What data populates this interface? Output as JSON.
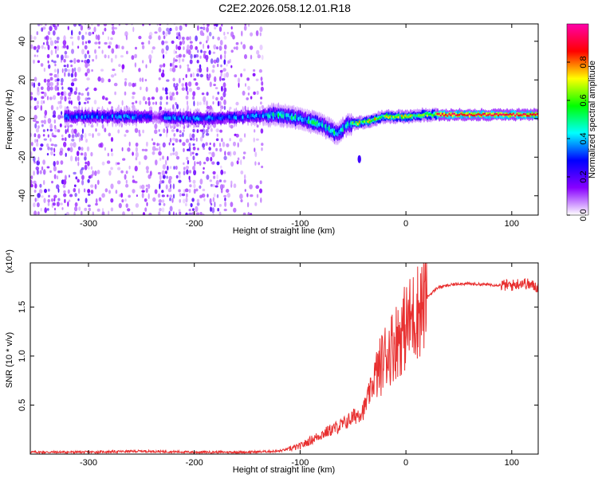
{
  "title": "C2E2.2026.058.12.01.R18",
  "chart_data": [
    {
      "type": "heatmap",
      "xlabel": "Height of straight line (km)",
      "ylabel": "Frequency (Hz)",
      "xlim": [
        -355,
        125
      ],
      "ylim": [
        -50,
        49
      ],
      "xticks": [
        -300,
        -200,
        -100,
        0,
        100
      ],
      "yticks": [
        -40,
        -20,
        0,
        20,
        40
      ],
      "grid": false,
      "colorbar": {
        "label": "Normalized spectral amplitude",
        "range": [
          0,
          1
        ],
        "ticks": [
          0.0,
          0.2,
          0.4,
          0.6,
          0.8
        ],
        "tick_labels": [
          "0.0",
          "0.2",
          "0.4",
          "0.6",
          "0.8"
        ],
        "colors": [
          "#ffffff",
          "#8800ff",
          "#0000ff",
          "#00ffff",
          "#00ff00",
          "#ffff00",
          "#ff0000",
          "#ff00aa"
        ]
      },
      "ridge": {
        "description": "strong signal band centred near 0 Hz",
        "x": [
          -320,
          -300,
          -250,
          -200,
          -150,
          -120,
          -100,
          -80,
          -65,
          -55,
          -40,
          -20,
          0,
          20,
          50,
          100,
          125
        ],
        "y": [
          1,
          1,
          1,
          0,
          1,
          2,
          0,
          -3,
          -8,
          -3,
          -2,
          1,
          1,
          2,
          2,
          2,
          2
        ]
      }
    },
    {
      "type": "line",
      "xlabel": "Height of straight line (km)",
      "ylabel": "SNR (10 * v/v)",
      "y_scale_note": "(x10⁴)",
      "xlim": [
        -355,
        125
      ],
      "ylim": [
        0,
        1.95
      ],
      "xticks": [
        -300,
        -200,
        -100,
        0,
        100
      ],
      "yticks": [
        0.5,
        1.0,
        1.5
      ],
      "ytick_labels": [
        "0.5",
        "1.0",
        "1.5"
      ],
      "grid": false,
      "series": [
        {
          "color": "#e83030",
          "x": [
            -355,
            -300,
            -250,
            -200,
            -150,
            -120,
            -100,
            -80,
            -60,
            -40,
            -30,
            -20,
            -10,
            0,
            10,
            20,
            30,
            50,
            75,
            100,
            110,
            125
          ],
          "y": [
            0.02,
            0.02,
            0.03,
            0.02,
            0.02,
            0.03,
            0.08,
            0.2,
            0.3,
            0.45,
            0.75,
            1.0,
            1.15,
            1.3,
            1.45,
            1.6,
            1.7,
            1.74,
            1.73,
            1.72,
            1.75,
            1.7
          ]
        }
      ]
    }
  ]
}
